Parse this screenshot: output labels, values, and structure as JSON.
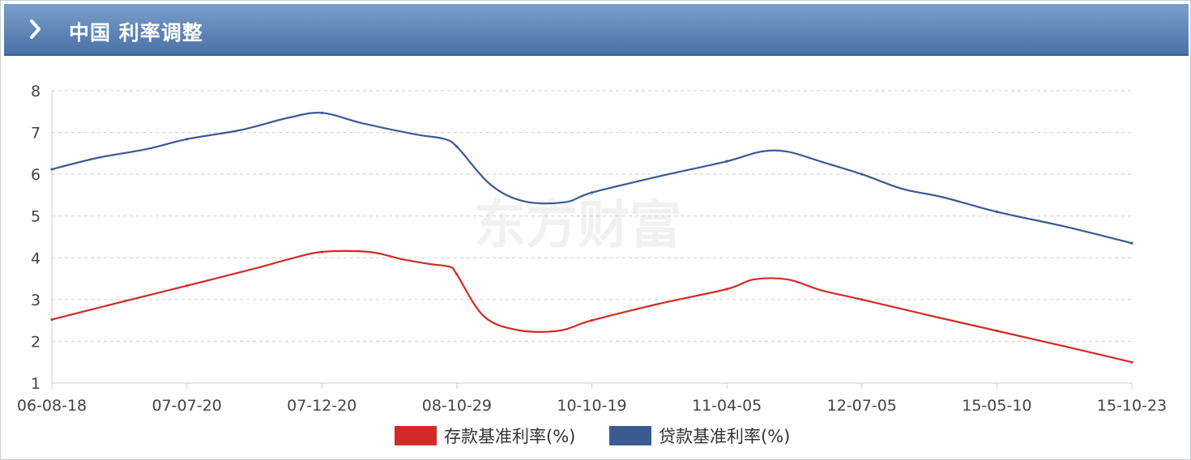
{
  "header": {
    "title": "中国 利率调整",
    "icon": "chevron-right-icon"
  },
  "watermark": "东方财富",
  "chart_data": {
    "type": "line",
    "title": "中国 利率调整",
    "x_ticks": [
      "06-08-18",
      "07-07-20",
      "07-12-20",
      "08-10-29",
      "10-10-19",
      "11-04-05",
      "12-07-05",
      "15-05-10",
      "15-10-23"
    ],
    "ylim": [
      1,
      8
    ],
    "y_ticks": [
      1,
      2,
      3,
      4,
      5,
      6,
      7,
      8
    ],
    "grid": true,
    "legend_position": "bottom-center",
    "series": [
      {
        "name": "存款基准利率(%)",
        "color": "#d22b27",
        "values": [
          2.52,
          3.33,
          4.14,
          3.6,
          2.5,
          3.25,
          3.0,
          2.25,
          1.5
        ],
        "path": [
          [
            0,
            2.52
          ],
          [
            0.5,
            2.93
          ],
          [
            1,
            3.33
          ],
          [
            1.5,
            3.74
          ],
          [
            1.75,
            3.96
          ],
          [
            2,
            4.14
          ],
          [
            2.35,
            4.14
          ],
          [
            2.6,
            3.96
          ],
          [
            2.8,
            3.85
          ],
          [
            2.95,
            3.78
          ],
          [
            3,
            3.6
          ],
          [
            3.2,
            2.6
          ],
          [
            3.45,
            2.27
          ],
          [
            3.75,
            2.25
          ],
          [
            4,
            2.5
          ],
          [
            4.5,
            2.9
          ],
          [
            5,
            3.25
          ],
          [
            5.2,
            3.48
          ],
          [
            5.45,
            3.48
          ],
          [
            5.7,
            3.22
          ],
          [
            6,
            3.0
          ],
          [
            6.5,
            2.62
          ],
          [
            7,
            2.25
          ],
          [
            7.5,
            1.88
          ],
          [
            8,
            1.5
          ]
        ]
      },
      {
        "name": "贷款基准利率(%)",
        "color": "#3a5a92",
        "values": [
          6.12,
          6.84,
          7.47,
          6.66,
          5.56,
          6.31,
          6.0,
          5.1,
          4.35
        ],
        "path": [
          [
            0,
            6.12
          ],
          [
            0.35,
            6.4
          ],
          [
            0.7,
            6.6
          ],
          [
            1,
            6.84
          ],
          [
            1.4,
            7.06
          ],
          [
            1.75,
            7.35
          ],
          [
            2,
            7.47
          ],
          [
            2.3,
            7.22
          ],
          [
            2.7,
            6.95
          ],
          [
            2.9,
            6.85
          ],
          [
            3,
            6.66
          ],
          [
            3.25,
            5.75
          ],
          [
            3.5,
            5.35
          ],
          [
            3.8,
            5.33
          ],
          [
            4,
            5.56
          ],
          [
            4.5,
            5.95
          ],
          [
            5,
            6.31
          ],
          [
            5.25,
            6.54
          ],
          [
            5.45,
            6.54
          ],
          [
            5.7,
            6.3
          ],
          [
            6,
            6.0
          ],
          [
            6.3,
            5.65
          ],
          [
            6.6,
            5.45
          ],
          [
            7,
            5.1
          ],
          [
            7.5,
            4.75
          ],
          [
            8,
            4.35
          ]
        ]
      }
    ]
  }
}
